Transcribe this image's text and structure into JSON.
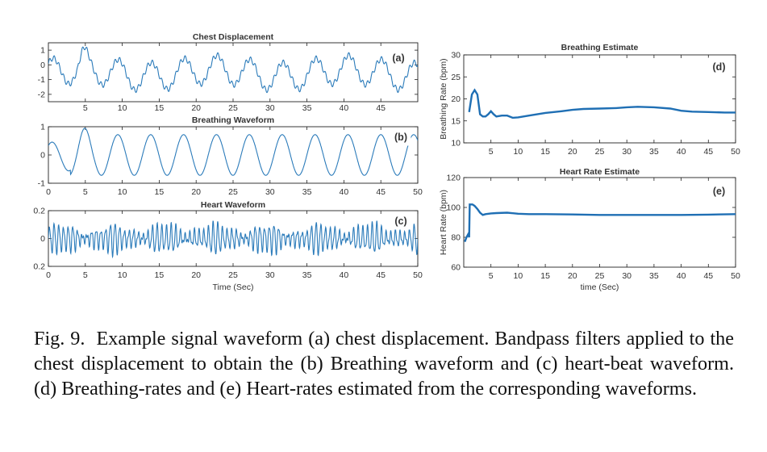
{
  "caption": {
    "label": "Fig. 9.",
    "text": "Example signal waveform (a) chest displacement. Bandpass filters applied to the chest displacement to obtain the (b) Breathing waveform and (c) heart-beat waveform. (d) Breathing-rates and (e) Heart-rates estimated from the corresponding waveforms."
  },
  "chart_data": [
    {
      "id": "a",
      "type": "line",
      "title": "Chest Displacement",
      "panel_label": "(a)",
      "xlabel": "",
      "ylabel": "",
      "xlim": [
        0,
        50
      ],
      "ylim": [
        -2.5,
        1.5
      ],
      "xticks": [
        5,
        10,
        15,
        20,
        25,
        30,
        35,
        40,
        45
      ],
      "yticks": [
        1,
        0,
        -1,
        -2
      ],
      "color": "#2b7bba",
      "signal": {
        "kind": "breathing_plus_drift",
        "breath_period_s": 4.45,
        "amplitude": 1.0,
        "peak_times_s": [
          0.6,
          4.8,
          9.2,
          13.7,
          18.1,
          22.5,
          27.0,
          31.4,
          35.8,
          40.2,
          44.6,
          49.1
        ]
      }
    },
    {
      "id": "b",
      "type": "line",
      "title": "Breathing Waveform",
      "panel_label": "(b)",
      "xlabel": "",
      "ylabel": "",
      "xlim": [
        0,
        50
      ],
      "ylim": [
        -1,
        1
      ],
      "xticks": [
        0,
        5,
        10,
        15,
        20,
        25,
        30,
        35,
        40,
        45,
        50
      ],
      "yticks": [
        1,
        0,
        -1
      ],
      "color": "#2b7bba",
      "signal": {
        "kind": "sinusoid",
        "period_s": 4.45,
        "amplitude": 0.72,
        "peak_times_s": [
          0.5,
          4.8,
          9.2,
          13.7,
          18.1,
          22.5,
          27.0,
          31.4,
          35.8,
          40.2,
          44.6,
          49.1
        ],
        "first_peak_value": 0.95
      }
    },
    {
      "id": "c",
      "type": "line",
      "title": "Heart Waveform",
      "panel_label": "(c)",
      "xlabel": "Time (Sec)",
      "ylabel": "",
      "xlim": [
        0,
        50
      ],
      "ylim": [
        -0.2,
        0.2
      ],
      "xticks": [
        0,
        5,
        10,
        15,
        20,
        25,
        30,
        35,
        40,
        45,
        50
      ],
      "yticks": [
        0.2,
        0,
        0.2
      ],
      "ytick_labels": [
        "0.2",
        "0",
        "0.2"
      ],
      "color": "#2b7bba",
      "signal": {
        "kind": "oscillation",
        "freq_hz": 1.58,
        "amplitude": 0.09
      }
    },
    {
      "id": "d",
      "type": "line",
      "title": "Breathing Estimate",
      "panel_label": "(d)",
      "xlabel": "",
      "ylabel": "Breathing Rate (bpm)",
      "xlim": [
        0,
        50
      ],
      "ylim": [
        10,
        30
      ],
      "xticks": [
        5,
        10,
        15,
        20,
        25,
        30,
        35,
        40,
        45,
        50
      ],
      "yticks": [
        30,
        25,
        20,
        15,
        10
      ],
      "color": "#1f6fb4",
      "x": [
        1.0,
        1.5,
        2.0,
        2.5,
        3.0,
        3.5,
        4.0,
        4.5,
        5.0,
        5.5,
        6.0,
        7.0,
        8.0,
        9.0,
        10.0,
        12.0,
        15.0,
        18.0,
        20.0,
        22.0,
        25.0,
        28.0,
        30.0,
        32.0,
        35.0,
        38.0,
        40.0,
        42.0,
        45.0,
        48.0,
        50.0
      ],
      "y": [
        17.0,
        21.0,
        22.0,
        21.0,
        16.5,
        16.0,
        16.0,
        16.5,
        17.2,
        16.5,
        16.0,
        16.2,
        16.2,
        15.7,
        15.8,
        16.2,
        16.8,
        17.2,
        17.5,
        17.7,
        17.8,
        17.9,
        18.1,
        18.2,
        18.1,
        17.8,
        17.3,
        17.1,
        17.0,
        16.9,
        16.9
      ]
    },
    {
      "id": "e",
      "type": "line",
      "title": "Heart Rate Estimate",
      "panel_label": "(e)",
      "xlabel": "time (Sec)",
      "ylabel": "Heart Rate (bpm)",
      "xlim": [
        0,
        50
      ],
      "ylim": [
        60,
        120
      ],
      "xticks": [
        5,
        10,
        15,
        20,
        25,
        30,
        35,
        40,
        45,
        50
      ],
      "yticks": [
        120,
        100,
        80,
        60
      ],
      "color": "#1f6fb4",
      "x": [
        0.2,
        0.5,
        0.8,
        1.0,
        1.1,
        1.6,
        2.0,
        2.5,
        3.0,
        3.5,
        4.0,
        5.0,
        6.0,
        8.0,
        10.0,
        12.0,
        15.0,
        20.0,
        25.0,
        30.0,
        35.0,
        40.0,
        45.0,
        50.0
      ],
      "y": [
        77.0,
        80.0,
        82.0,
        80.0,
        102.0,
        102.0,
        101.0,
        99.0,
        96.5,
        95.0,
        95.5,
        96.0,
        96.2,
        96.5,
        95.8,
        95.5,
        95.5,
        95.3,
        95.0,
        95.0,
        95.0,
        95.0,
        95.2,
        95.5
      ]
    }
  ]
}
